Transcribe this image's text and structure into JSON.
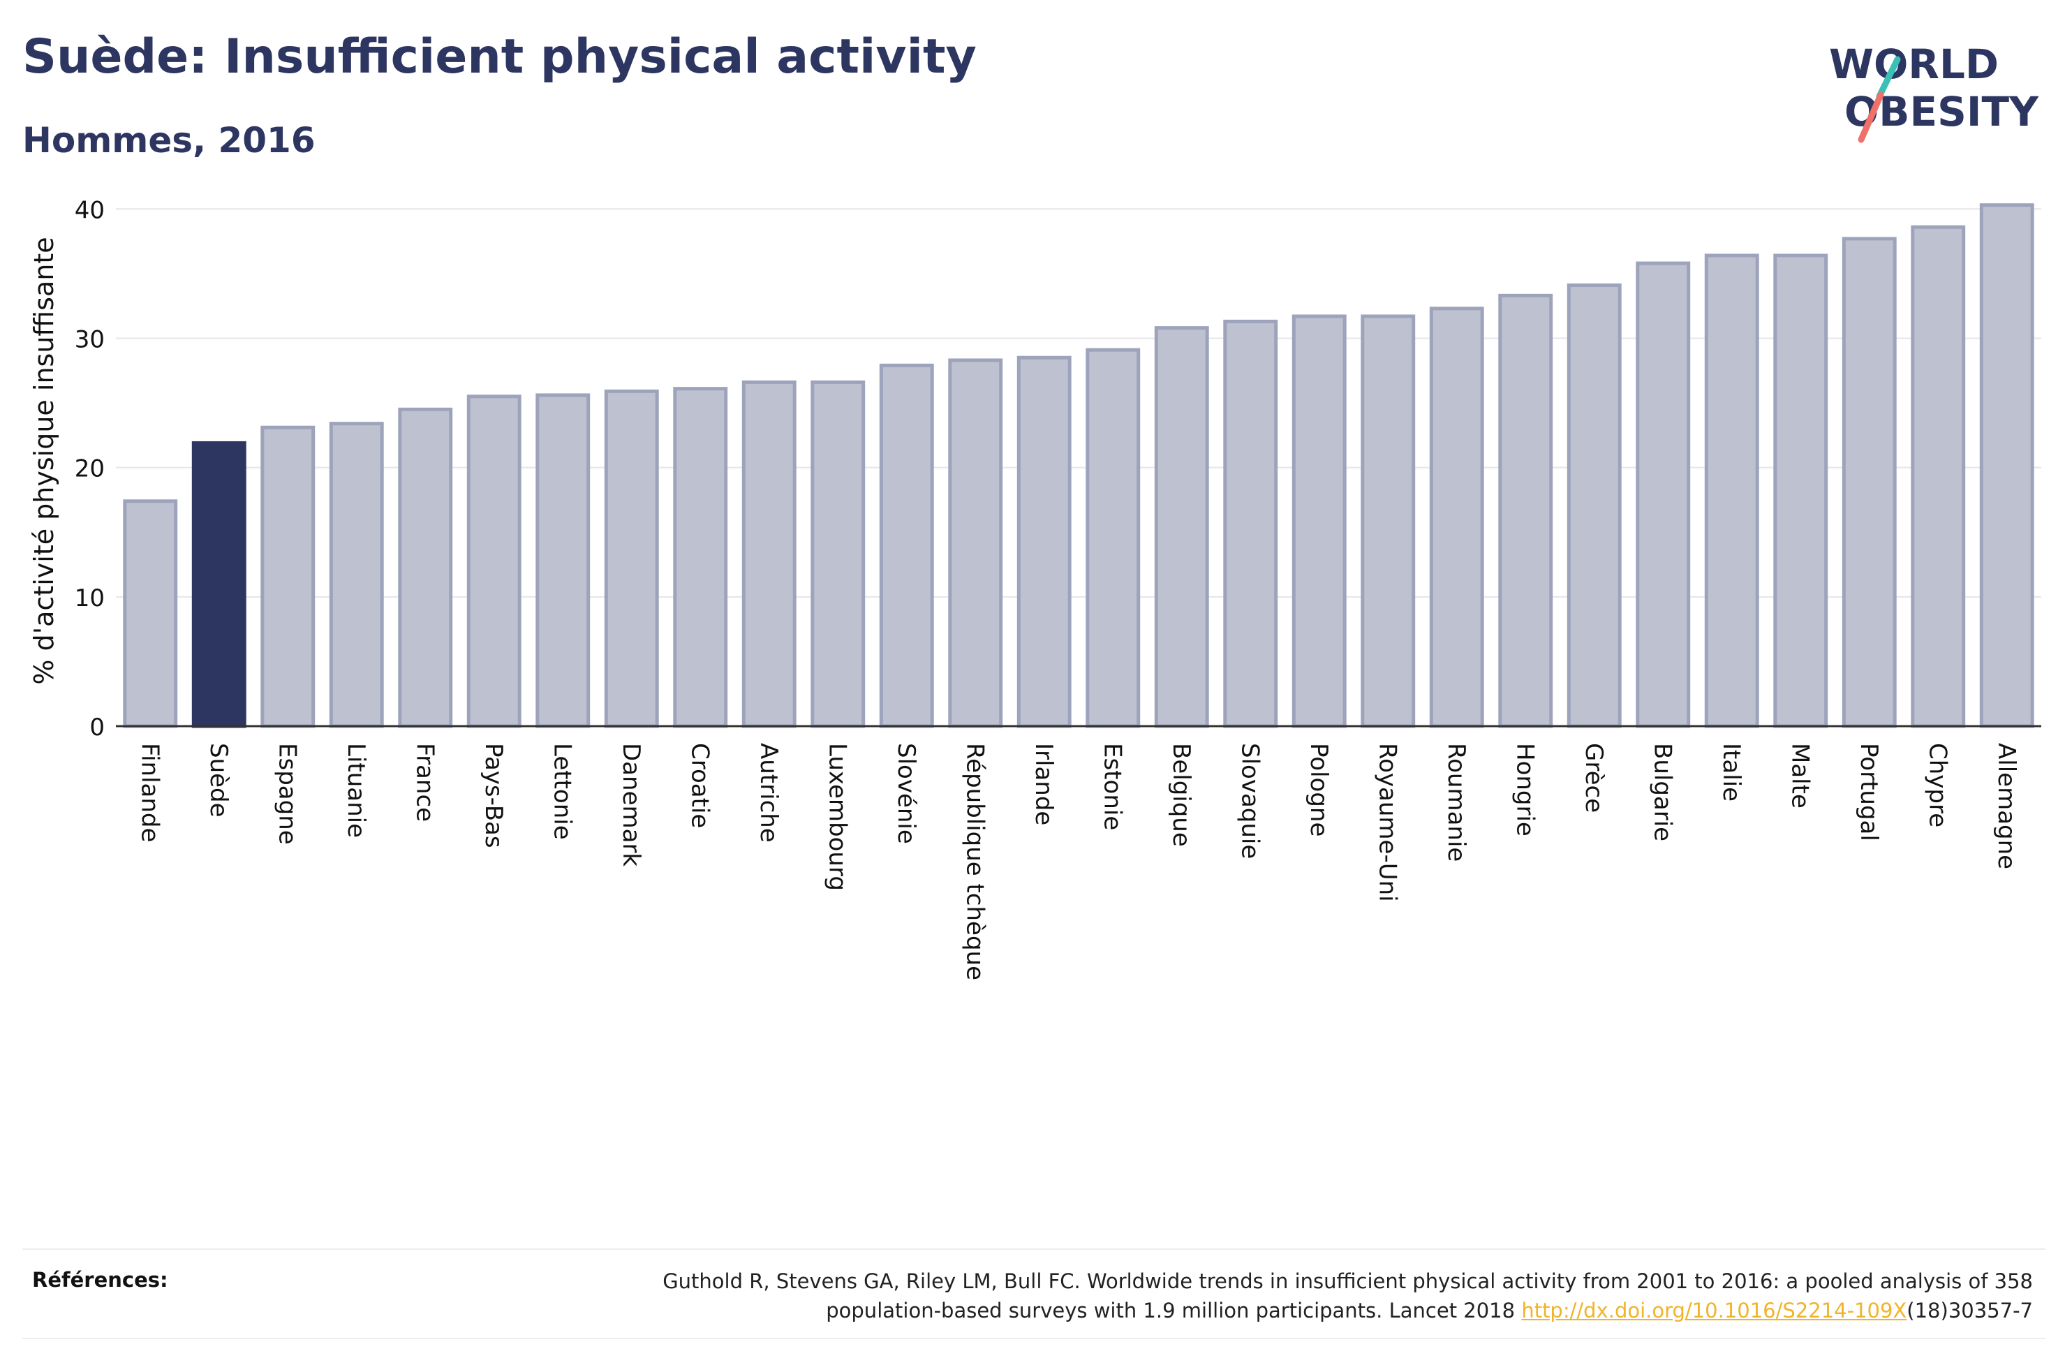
{
  "header": {
    "title": "Suède: Insufficient physical activity",
    "subtitle": "Hommes, 2016"
  },
  "logo": {
    "line1": "WORLD",
    "line2": "OBESITY",
    "slash_colors": [
      "#3bbfb7",
      "#f07167"
    ]
  },
  "colors": {
    "highlight": "#2d3561",
    "bar_fill": "#bec1cf",
    "bar_stroke": "#9ea3bc",
    "title": "#2d3561",
    "link": "#f0b429"
  },
  "chart_data": {
    "type": "bar",
    "ylabel": "% d'activité physique insuffisante",
    "xlabel": "",
    "ylim": [
      0,
      40.5
    ],
    "yticks": [
      0,
      10,
      20,
      30,
      40
    ],
    "grid": true,
    "highlight": "Suède",
    "categories": [
      "Finlande",
      "Suède",
      "Espagne",
      "Lituanie",
      "France",
      "Pays-Bas",
      "Lettonie",
      "Danemark",
      "Croatie",
      "Autriche",
      "Luxembourg",
      "Slovénie",
      "République tchèque",
      "Irlande",
      "Estonie",
      "Belgique",
      "Slovaquie",
      "Pologne",
      "Royaume-Uni",
      "Roumanie",
      "Hongrie",
      "Grèce",
      "Bulgarie",
      "Italie",
      "Malte",
      "Portugal",
      "Chypre",
      "Allemagne"
    ],
    "values": [
      17.4,
      21.9,
      23.1,
      23.4,
      24.5,
      25.5,
      25.6,
      25.9,
      26.1,
      26.6,
      26.6,
      27.9,
      28.3,
      28.5,
      29.1,
      30.8,
      31.3,
      31.7,
      31.7,
      32.3,
      33.3,
      34.1,
      35.8,
      36.4,
      36.4,
      37.7,
      38.6,
      40.3
    ]
  },
  "references": {
    "label": "Références:",
    "text_line1": "Guthold R, Stevens GA, Riley LM, Bull FC. Worldwide trends in insufficient physical activity from 2001 to 2016: a pooled analysis of 358",
    "text_line2_prefix": "population-based surveys with 1.9 million participants. Lancet 2018 ",
    "link_text": "http://dx.doi.org/10.1016/S2214-109X",
    "text_line2_suffix": "(18)30357-7"
  }
}
